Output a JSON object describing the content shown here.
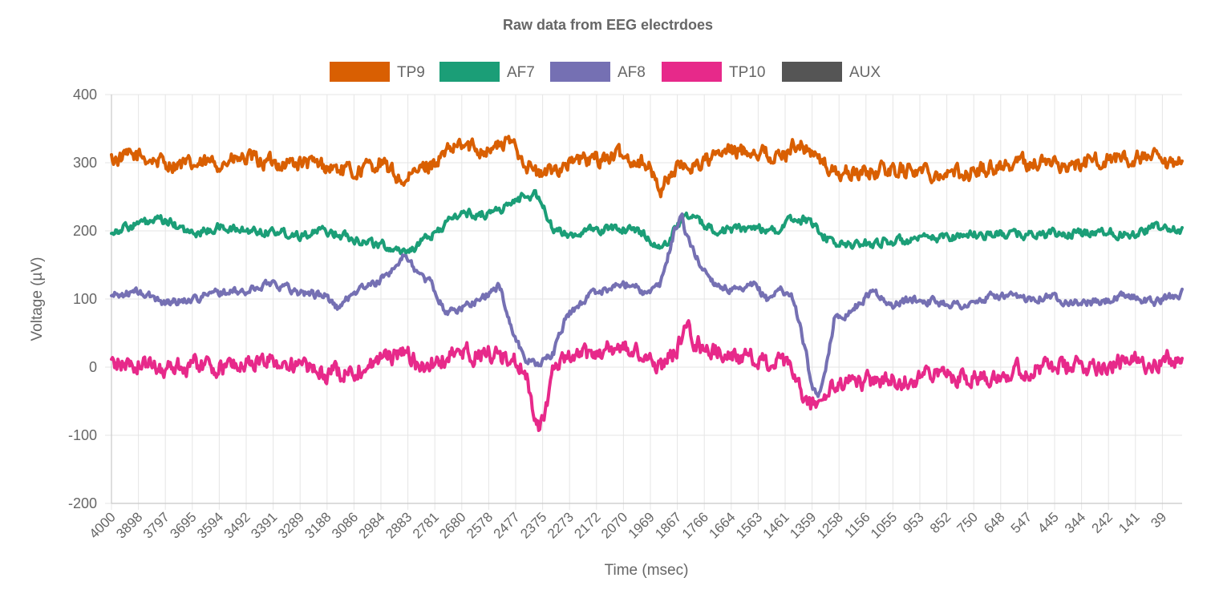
{
  "chart_data": {
    "type": "line",
    "title": "Raw data from EEG electrdoes",
    "xlabel": "Time (msec)",
    "ylabel": "Voltage (µV)",
    "ylim": [
      -200,
      400
    ],
    "y_ticks": [
      400,
      300,
      200,
      100,
      0,
      -100,
      -200
    ],
    "x_tick_labels": [
      "4000",
      "3898",
      "3797",
      "3695",
      "3594",
      "3492",
      "3391",
      "3289",
      "3188",
      "3086",
      "2984",
      "2883",
      "2781",
      "2680",
      "2578",
      "2477",
      "2375",
      "2273",
      "2172",
      "2070",
      "1969",
      "1867",
      "1766",
      "1664",
      "1563",
      "1461",
      "1359",
      "1258",
      "1156",
      "1055",
      "953",
      "852",
      "750",
      "648",
      "547",
      "445",
      "344",
      "242",
      "141",
      "39"
    ],
    "x_domain": [
      4000,
      0
    ],
    "grid": true,
    "legend_position": "top",
    "series": [
      {
        "name": "TP9",
        "color": "#d95f02",
        "x": [
          4000,
          3900,
          3800,
          3700,
          3600,
          3500,
          3400,
          3300,
          3200,
          3100,
          3000,
          2900,
          2850,
          2800,
          2700,
          2600,
          2500,
          2450,
          2400,
          2300,
          2200,
          2100,
          2000,
          1950,
          1900,
          1800,
          1700,
          1600,
          1500,
          1450,
          1400,
          1300,
          1200,
          1100,
          1000,
          900,
          800,
          700,
          600,
          500,
          400,
          300,
          200,
          100,
          50,
          0
        ],
        "values": [
          305,
          310,
          300,
          295,
          300,
          305,
          300,
          300,
          295,
          285,
          300,
          270,
          290,
          300,
          325,
          320,
          330,
          300,
          280,
          300,
          305,
          310,
          300,
          260,
          290,
          300,
          315,
          320,
          305,
          330,
          320,
          285,
          285,
          290,
          290,
          285,
          285,
          295,
          300,
          300,
          295,
          305,
          305,
          305,
          290,
          300
        ]
      },
      {
        "name": "AF7",
        "color": "#1b9e77",
        "x": [
          4000,
          3900,
          3800,
          3700,
          3600,
          3500,
          3400,
          3300,
          3200,
          3100,
          3000,
          2950,
          2900,
          2850,
          2800,
          2700,
          2600,
          2500,
          2450,
          2400,
          2350,
          2300,
          2200,
          2100,
          2000,
          1950,
          1900,
          1850,
          1800,
          1700,
          1600,
          1500,
          1450,
          1400,
          1300,
          1200,
          1100,
          1000,
          900,
          800,
          700,
          600,
          500,
          400,
          300,
          200,
          100,
          0
        ],
        "values": [
          200,
          210,
          215,
          195,
          205,
          200,
          200,
          195,
          200,
          190,
          180,
          175,
          170,
          180,
          195,
          225,
          225,
          240,
          255,
          250,
          200,
          195,
          200,
          205,
          195,
          170,
          200,
          225,
          210,
          200,
          205,
          200,
          220,
          215,
          180,
          180,
          185,
          185,
          190,
          195,
          195,
          195,
          195,
          195,
          200,
          195,
          205,
          200
        ]
      },
      {
        "name": "AF8",
        "color": "#7570b3",
        "x": [
          4000,
          3900,
          3800,
          3700,
          3600,
          3500,
          3400,
          3300,
          3200,
          3150,
          3100,
          3000,
          2950,
          2900,
          2850,
          2800,
          2750,
          2700,
          2600,
          2550,
          2500,
          2450,
          2400,
          2350,
          2300,
          2200,
          2100,
          2050,
          2000,
          1950,
          1900,
          1870,
          1850,
          1800,
          1750,
          1700,
          1650,
          1600,
          1550,
          1500,
          1450,
          1400,
          1380,
          1350,
          1300,
          1250,
          1200,
          1150,
          1100,
          1050,
          1000,
          900,
          800,
          700,
          600,
          500,
          400,
          300,
          200,
          100,
          0
        ],
        "values": [
          105,
          110,
          95,
          100,
          110,
          110,
          125,
          110,
          105,
          85,
          110,
          125,
          145,
          165,
          135,
          120,
          80,
          85,
          105,
          120,
          50,
          10,
          5,
          20,
          75,
          110,
          120,
          125,
          105,
          120,
          195,
          225,
          190,
          150,
          125,
          115,
          110,
          120,
          100,
          115,
          100,
          10,
          -40,
          -40,
          70,
          80,
          95,
          115,
          90,
          95,
          100,
          95,
          90,
          105,
          100,
          105,
          95,
          95,
          105,
          95,
          110
        ]
      },
      {
        "name": "TP10",
        "color": "#e7298a",
        "x": [
          4000,
          3900,
          3800,
          3700,
          3600,
          3500,
          3400,
          3300,
          3200,
          3100,
          3000,
          2900,
          2850,
          2800,
          2700,
          2600,
          2500,
          2450,
          2430,
          2400,
          2350,
          2300,
          2200,
          2100,
          2000,
          1950,
          1900,
          1850,
          1800,
          1700,
          1600,
          1500,
          1450,
          1420,
          1400,
          1350,
          1300,
          1200,
          1100,
          1000,
          900,
          800,
          700,
          600,
          500,
          400,
          300,
          200,
          100,
          0
        ],
        "values": [
          5,
          5,
          0,
          5,
          0,
          5,
          10,
          0,
          -10,
          -5,
          10,
          25,
          -5,
          5,
          20,
          20,
          10,
          -10,
          -50,
          -90,
          -10,
          10,
          20,
          30,
          15,
          0,
          20,
          55,
          30,
          20,
          10,
          5,
          -10,
          -40,
          -60,
          -50,
          -30,
          -20,
          -20,
          -15,
          -10,
          -15,
          -10,
          -5,
          0,
          0,
          5,
          5,
          10,
          10
        ]
      },
      {
        "name": "AUX",
        "color": "#555555",
        "x": [],
        "values": []
      }
    ]
  }
}
